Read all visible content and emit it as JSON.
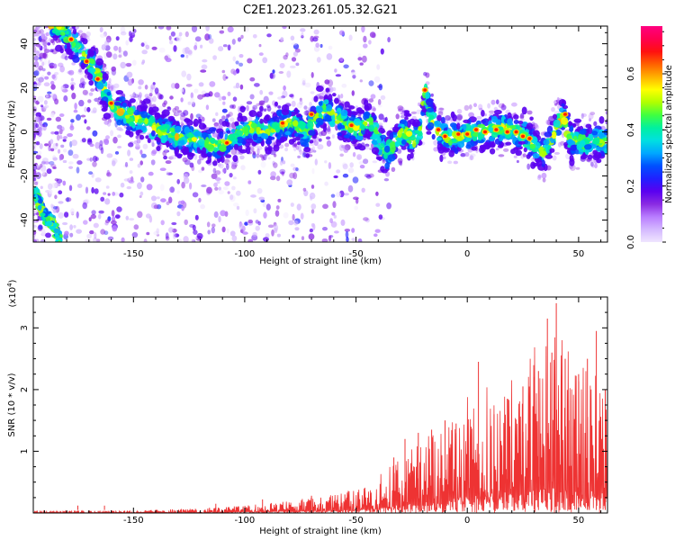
{
  "title": "C2E1.2023.261.05.32.G21",
  "chart_data": [
    {
      "type": "heatmap",
      "xlabel": "Height of straight line (km)",
      "ylabel": "Frequency (Hz)",
      "xlim": [
        -195,
        63
      ],
      "ylim": [
        -50,
        48
      ],
      "xticks": [
        -150,
        -100,
        -50,
        0,
        50
      ],
      "yticks": [
        -40,
        -20,
        0,
        20,
        40
      ],
      "colorbar": {
        "label": "Normalized spectral amplitude",
        "range": [
          0.0,
          0.77
        ],
        "ticks": [
          0.0,
          0.2,
          0.4,
          0.6
        ],
        "colors": [
          "#f0e6ff",
          "#d4b8ff",
          "#b87cff",
          "#8a2be2",
          "#5a00f0",
          "#2020ff",
          "#0050ff",
          "#00a8ff",
          "#00e0e0",
          "#00f0a0",
          "#40ff40",
          "#b0ff00",
          "#ffff00",
          "#ffb000",
          "#ff6000",
          "#ff1010",
          "#ff0050",
          "#ff0080"
        ]
      },
      "ridge": [
        [
          -183,
          48
        ],
        [
          -178,
          42
        ],
        [
          -172,
          34
        ],
        [
          -166,
          26
        ],
        [
          -162,
          16
        ],
        [
          -158,
          10
        ],
        [
          -134,
          -1
        ],
        [
          -128,
          -3
        ],
        [
          -120,
          -4
        ],
        [
          -112,
          -6
        ],
        [
          -105,
          -3
        ],
        [
          -98,
          2
        ],
        [
          -90,
          0
        ],
        [
          -84,
          3
        ],
        [
          -78,
          4
        ],
        [
          -72,
          -1
        ],
        [
          -68,
          7
        ],
        [
          -63,
          10
        ],
        [
          -58,
          6
        ],
        [
          -53,
          3
        ],
        [
          -48,
          1
        ],
        [
          -44,
          6
        ],
        [
          -40,
          -5
        ],
        [
          -36,
          -10
        ],
        [
          -32,
          -3
        ],
        [
          -28,
          0
        ],
        [
          -24,
          -4
        ],
        [
          -20,
          4
        ],
        [
          -19,
          19
        ],
        [
          -17,
          8
        ],
        [
          -14,
          1
        ],
        [
          -10,
          -2
        ],
        [
          -5,
          -3
        ],
        [
          0,
          -1
        ],
        [
          5,
          1
        ],
        [
          10,
          0
        ],
        [
          15,
          2
        ],
        [
          20,
          0
        ],
        [
          25,
          -1
        ],
        [
          30,
          -6
        ],
        [
          34,
          -10
        ],
        [
          38,
          -3
        ],
        [
          43,
          8
        ],
        [
          46,
          -3
        ],
        [
          52,
          -5
        ],
        [
          57,
          -4
        ],
        [
          62,
          -4
        ]
      ],
      "ridge_lower": [
        [
          -194,
          -28
        ],
        [
          -190,
          -38
        ],
        [
          -186,
          -42
        ],
        [
          -183,
          -50
        ]
      ],
      "hotspots": [
        [
          -178,
          42
        ],
        [
          -171,
          32
        ],
        [
          -166,
          24
        ],
        [
          -160,
          13
        ],
        [
          -108,
          -5
        ],
        [
          -83,
          4
        ],
        [
          -70,
          8
        ],
        [
          -52,
          3
        ],
        [
          -19,
          19
        ],
        [
          -13,
          1
        ],
        [
          -10,
          -2
        ],
        [
          -4,
          -1
        ],
        [
          0,
          -1
        ],
        [
          4,
          1
        ],
        [
          8,
          0
        ],
        [
          13,
          1
        ],
        [
          18,
          0
        ],
        [
          22,
          0
        ],
        [
          25,
          -2
        ],
        [
          28,
          -3
        ],
        [
          44,
          8
        ]
      ]
    },
    {
      "type": "line",
      "xlabel": "Height of straight line (km)",
      "ylabel": "SNR (10 * v/v)",
      "y_multiplier": "(x10",
      "y_exponent": "4",
      "xlim": [
        -195,
        63
      ],
      "ylim": [
        0,
        3.5
      ],
      "xticks": [
        -150,
        -100,
        -50,
        0,
        50
      ],
      "yticks": [
        1,
        2,
        3
      ],
      "color": "#ee3333",
      "envelope": [
        [
          -195,
          0.03
        ],
        [
          -150,
          0.04
        ],
        [
          -120,
          0.08
        ],
        [
          -100,
          0.12
        ],
        [
          -80,
          0.2
        ],
        [
          -60,
          0.3
        ],
        [
          -45,
          0.45
        ],
        [
          -30,
          0.9
        ],
        [
          -20,
          1.2
        ],
        [
          -10,
          1.5
        ],
        [
          0,
          1.9
        ],
        [
          10,
          2.1
        ],
        [
          20,
          2.3
        ],
        [
          30,
          2.7
        ],
        [
          40,
          3.0
        ],
        [
          50,
          2.5
        ],
        [
          62,
          2.2
        ]
      ],
      "spikes": [
        [
          -175,
          0.12
        ],
        [
          -163,
          0.12
        ],
        [
          -113,
          0.15
        ],
        [
          -92,
          0.22
        ],
        [
          -70,
          0.28
        ],
        [
          -55,
          0.3
        ],
        [
          -33,
          0.9
        ],
        [
          -28,
          1.2
        ],
        [
          -22,
          1.3
        ],
        [
          -16,
          1.35
        ],
        [
          -10,
          1.5
        ],
        [
          -5,
          1.45
        ],
        [
          5,
          2.45
        ],
        [
          12,
          1.6
        ],
        [
          18,
          1.85
        ],
        [
          25,
          2.05
        ],
        [
          30,
          2.2
        ],
        [
          32,
          2.3
        ],
        [
          36,
          3.15
        ],
        [
          38,
          2.6
        ],
        [
          40,
          3.4
        ],
        [
          44,
          2.5
        ],
        [
          46,
          1.5
        ],
        [
          50,
          2.25
        ],
        [
          54,
          2.5
        ],
        [
          58,
          2.95
        ],
        [
          62,
          2.0
        ]
      ]
    }
  ]
}
